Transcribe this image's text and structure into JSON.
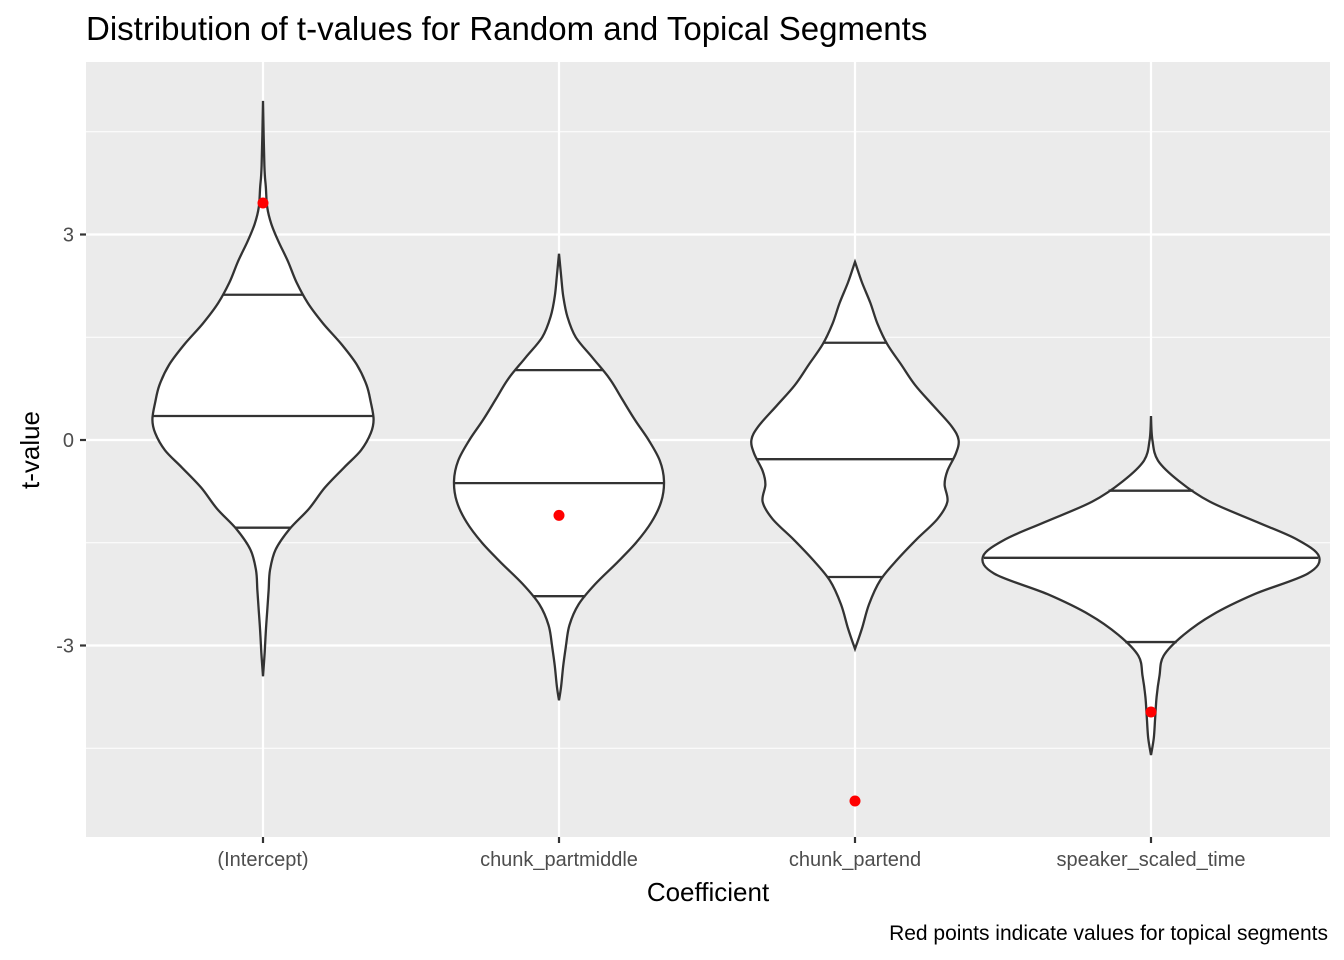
{
  "chart_data": {
    "type": "violin",
    "title": "Distribution of t-values for Random and Topical Segments",
    "xlabel": "Coefficient",
    "ylabel": "t-value",
    "caption": "Red points indicate values for topical segments",
    "ylim": [
      -5.8,
      5.5
    ],
    "yticks": [
      -3,
      0,
      3
    ],
    "ytick_labels": [
      "-3",
      "0",
      "3"
    ],
    "grid": true,
    "background": "#ebebeb",
    "point_color": "#ff0000",
    "categories": [
      "(Intercept)",
      "chunk_partmiddle",
      "chunk_partend",
      "speaker_scaled_time"
    ],
    "violins": [
      {
        "category": "(Intercept)",
        "quantiles": [
          -1.28,
          0.35,
          2.12
        ],
        "profile": [
          [
            4.95,
            0.0
          ],
          [
            4.0,
            0.01
          ],
          [
            3.7,
            0.02
          ],
          [
            3.4,
            0.03
          ],
          [
            3.15,
            0.06
          ],
          [
            2.9,
            0.11
          ],
          [
            2.6,
            0.18
          ],
          [
            2.3,
            0.24
          ],
          [
            2.0,
            0.32
          ],
          [
            1.7,
            0.43
          ],
          [
            1.4,
            0.56
          ],
          [
            1.1,
            0.67
          ],
          [
            0.8,
            0.74
          ],
          [
            0.55,
            0.77
          ],
          [
            0.3,
            0.79
          ],
          [
            0.1,
            0.77
          ],
          [
            -0.15,
            0.7
          ],
          [
            -0.4,
            0.58
          ],
          [
            -0.7,
            0.44
          ],
          [
            -1.0,
            0.33
          ],
          [
            -1.3,
            0.19
          ],
          [
            -1.6,
            0.09
          ],
          [
            -1.9,
            0.05
          ],
          [
            -2.2,
            0.04
          ],
          [
            -2.5,
            0.03
          ],
          [
            -2.8,
            0.02
          ],
          [
            -3.1,
            0.012
          ],
          [
            -3.45,
            0.0
          ]
        ]
      },
      {
        "category": "chunk_partmiddle",
        "quantiles": [
          -2.28,
          -0.63,
          1.02
        ],
        "profile": [
          [
            2.72,
            0.0
          ],
          [
            2.4,
            0.015
          ],
          [
            2.1,
            0.03
          ],
          [
            1.8,
            0.06
          ],
          [
            1.5,
            0.12
          ],
          [
            1.2,
            0.24
          ],
          [
            0.9,
            0.36
          ],
          [
            0.6,
            0.45
          ],
          [
            0.3,
            0.54
          ],
          [
            0.0,
            0.64
          ],
          [
            -0.3,
            0.72
          ],
          [
            -0.6,
            0.75
          ],
          [
            -0.9,
            0.73
          ],
          [
            -1.2,
            0.66
          ],
          [
            -1.5,
            0.55
          ],
          [
            -1.8,
            0.41
          ],
          [
            -2.1,
            0.26
          ],
          [
            -2.4,
            0.14
          ],
          [
            -2.7,
            0.075
          ],
          [
            -3.0,
            0.05
          ],
          [
            -3.3,
            0.03
          ],
          [
            -3.6,
            0.015
          ],
          [
            -3.8,
            0.0
          ]
        ]
      },
      {
        "category": "chunk_partend",
        "quantiles": [
          -2.0,
          -0.28,
          1.42
        ],
        "profile": [
          [
            2.6,
            0.0
          ],
          [
            2.3,
            0.05
          ],
          [
            2.0,
            0.11
          ],
          [
            1.7,
            0.16
          ],
          [
            1.4,
            0.23
          ],
          [
            1.1,
            0.33
          ],
          [
            0.8,
            0.43
          ],
          [
            0.5,
            0.56
          ],
          [
            0.2,
            0.69
          ],
          [
            0.0,
            0.74
          ],
          [
            -0.2,
            0.72
          ],
          [
            -0.45,
            0.66
          ],
          [
            -0.65,
            0.64
          ],
          [
            -0.9,
            0.66
          ],
          [
            -1.15,
            0.59
          ],
          [
            -1.45,
            0.44
          ],
          [
            -1.75,
            0.3
          ],
          [
            -2.05,
            0.18
          ],
          [
            -2.4,
            0.1
          ],
          [
            -2.75,
            0.05
          ],
          [
            -3.05,
            0.0
          ]
        ]
      },
      {
        "category": "speaker_scaled_time",
        "quantiles": [
          -2.95,
          -1.72,
          -0.74
        ],
        "profile": [
          [
            0.35,
            0.0
          ],
          [
            0.0,
            0.01
          ],
          [
            -0.3,
            0.05
          ],
          [
            -0.6,
            0.2
          ],
          [
            -0.9,
            0.42
          ],
          [
            -1.2,
            0.76
          ],
          [
            -1.45,
            1.04
          ],
          [
            -1.7,
            1.2
          ],
          [
            -1.95,
            1.12
          ],
          [
            -2.25,
            0.74
          ],
          [
            -2.55,
            0.44
          ],
          [
            -2.85,
            0.23
          ],
          [
            -3.15,
            0.09
          ],
          [
            -3.45,
            0.06
          ],
          [
            -3.75,
            0.04
          ],
          [
            -4.05,
            0.03
          ],
          [
            -4.35,
            0.02
          ],
          [
            -4.6,
            0.0
          ]
        ]
      }
    ],
    "topical_points": [
      {
        "category": "(Intercept)",
        "value": 3.46
      },
      {
        "category": "chunk_partmiddle",
        "value": -1.1
      },
      {
        "category": "chunk_partend",
        "value": -5.27
      },
      {
        "category": "speaker_scaled_time",
        "value": -3.97
      }
    ]
  }
}
